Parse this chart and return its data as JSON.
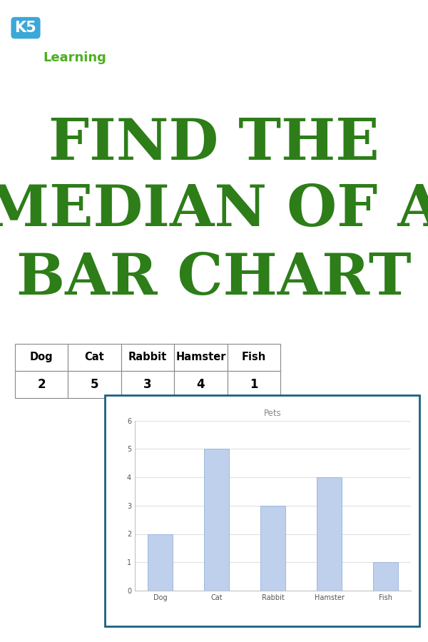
{
  "title_line1": "FIND THE",
  "title_line2": "MEDIAN OF A",
  "title_line3": "BAR CHART",
  "title_bg_color": "#F5921E",
  "title_text_color": "#2D7D18",
  "page_bg_color": "#FFFFFF",
  "categories": [
    "Dog",
    "Cat",
    "Rabbit",
    "Hamster",
    "Fish"
  ],
  "values": [
    2,
    5,
    3,
    4,
    1
  ],
  "bar_color": "#BFD0EC",
  "bar_edge_color": "#9DB8DE",
  "chart_title": "Pets",
  "chart_title_color": "#888888",
  "chart_border_color": "#1A6080",
  "ylim": [
    0,
    6
  ],
  "yticks": [
    0,
    1,
    2,
    3,
    4,
    5,
    6
  ],
  "grid_color": "#DDDDDD",
  "axis_label_color": "#555555",
  "table_header": [
    "Dog",
    "Cat",
    "Rabbit",
    "Hamster",
    "Fish"
  ],
  "table_values": [
    "2",
    "5",
    "3",
    "4",
    "1"
  ],
  "table_border_color": "#888888",
  "figsize": [
    6.0,
    9.0
  ],
  "dpi": 100
}
